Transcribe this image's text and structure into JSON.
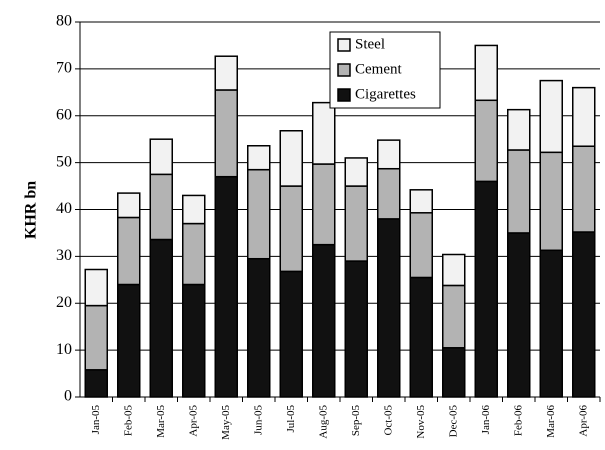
{
  "chart_data": {
    "type": "stacked_bar",
    "y_label": "KHR bn",
    "categories": [
      "Jan-05",
      "Feb-05",
      "Mar-05",
      "Apr-05",
      "May-05",
      "Jun-05",
      "Jul-05",
      "Aug-05",
      "Sep-05",
      "Oct-05",
      "Nov-05",
      "Dec-05",
      "Jan-06",
      "Feb-06",
      "Mar-06",
      "Apr-06"
    ],
    "series": [
      {
        "name": "Cigarettes",
        "color": "#111111",
        "values": [
          5.8,
          24,
          33.6,
          24,
          47,
          29.5,
          26.8,
          32.5,
          29,
          38,
          25.5,
          10.5,
          46,
          35,
          31.3,
          35.2
        ]
      },
      {
        "name": "Cement",
        "color": "#b3b3b3",
        "values": [
          13.7,
          14.3,
          13.9,
          13,
          18.5,
          19,
          18.2,
          17.2,
          16,
          10.7,
          13.8,
          13.3,
          17.3,
          17.7,
          20.9,
          18.3
        ]
      },
      {
        "name": "Steel",
        "color": "#f2f2f2",
        "values": [
          7.7,
          5.2,
          7.5,
          6,
          7.2,
          5.1,
          11.8,
          13.1,
          6,
          6.1,
          4.9,
          6.6,
          11.7,
          8.6,
          15.3,
          12.5
        ]
      }
    ],
    "ylim": [
      0,
      80
    ],
    "yticks": [
      0,
      10,
      20,
      30,
      40,
      50,
      60,
      70,
      80
    ],
    "grid": true,
    "legend": "upper center"
  }
}
